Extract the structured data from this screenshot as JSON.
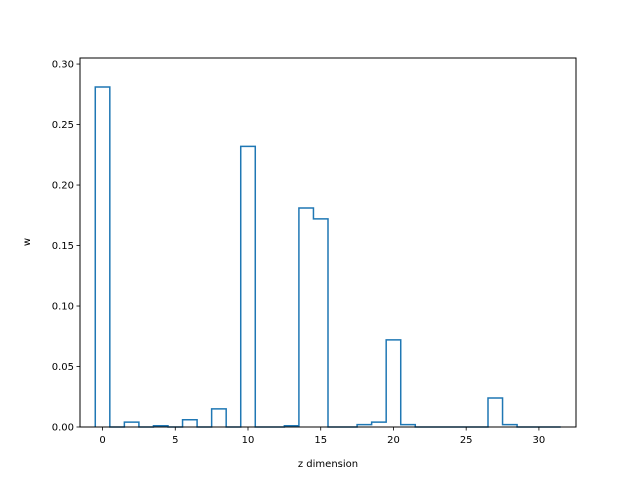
{
  "chart_data": {
    "type": "line",
    "style": "step-histogram",
    "xlabel": "z dimension",
    "ylabel": "w",
    "xlim": [
      -1.55,
      32.55
    ],
    "ylim": [
      0,
      0.305
    ],
    "xticks": [
      0,
      5,
      10,
      15,
      20,
      25,
      30
    ],
    "xtick_labels": [
      "0",
      "5",
      "10",
      "15",
      "20",
      "25",
      "30"
    ],
    "yticks": [
      0.0,
      0.05,
      0.1,
      0.15,
      0.2,
      0.25,
      0.3
    ],
    "ytick_labels": [
      "0.00",
      "0.05",
      "0.10",
      "0.15",
      "0.20",
      "0.25",
      "0.30"
    ],
    "grid": false,
    "legend": false,
    "series": [
      {
        "color": "#1f77b4",
        "x": [
          0,
          1,
          2,
          3,
          4,
          5,
          6,
          7,
          8,
          9,
          10,
          11,
          12,
          13,
          14,
          15,
          16,
          17,
          18,
          19,
          20,
          21,
          22,
          23,
          24,
          25,
          26,
          27,
          28,
          29,
          30,
          31
        ],
        "values": [
          0.281,
          0.0,
          0.004,
          0.0,
          0.001,
          0.0,
          0.006,
          0.0,
          0.015,
          0.0,
          0.232,
          0.0,
          0.0,
          0.001,
          0.181,
          0.172,
          0.0,
          0.0,
          0.002,
          0.004,
          0.072,
          0.002,
          0.0,
          0.0,
          0.0,
          0.0,
          0.0,
          0.024,
          0.002,
          0.0,
          0.0,
          0.0
        ]
      }
    ]
  }
}
